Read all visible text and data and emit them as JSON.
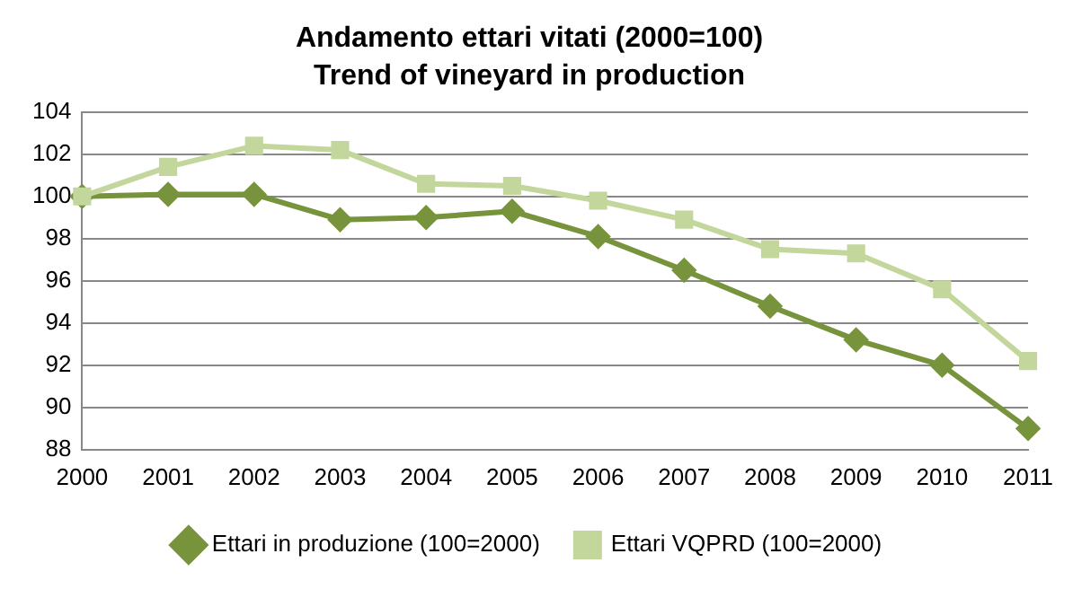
{
  "chart_data": {
    "type": "line",
    "title": "Andamento ettari vitati (2000=100)",
    "subtitle": "Trend of vineyard in production",
    "categories": [
      "2000",
      "2001",
      "2002",
      "2003",
      "2004",
      "2005",
      "2006",
      "2007",
      "2008",
      "2009",
      "2010",
      "2011"
    ],
    "series": [
      {
        "name": "Ettari in produzione (100=2000)",
        "color": "#77933c",
        "marker": "diamond",
        "values": [
          100,
          100.1,
          100.1,
          98.9,
          99.0,
          99.3,
          98.1,
          96.5,
          94.8,
          93.2,
          92.0,
          89.0
        ]
      },
      {
        "name": "Ettari VQPRD (100=2000)",
        "color": "#c3d69b",
        "marker": "square",
        "values": [
          100,
          101.4,
          102.4,
          102.2,
          100.6,
          100.5,
          99.8,
          98.9,
          97.5,
          97.3,
          95.6,
          92.2
        ]
      }
    ],
    "ylim": [
      88,
      104
    ],
    "yticks": [
      88,
      90,
      92,
      94,
      96,
      98,
      100,
      102,
      104
    ],
    "grid": "y",
    "legend": "bottom",
    "line_style": "solid"
  }
}
